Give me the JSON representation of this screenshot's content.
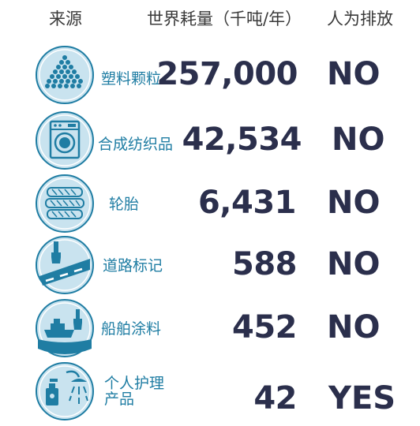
{
  "header": {
    "source": "来源",
    "amount": "世界耗量（千吨/年）",
    "human_emission": "人为排放"
  },
  "colors": {
    "accent": "#1f7da3",
    "dark": "#2b2f4c"
  },
  "rows": [
    {
      "label": "塑料颗粒",
      "amount": "257,000",
      "flag": "NO",
      "icon": "plastic-pellets-icon"
    },
    {
      "label": "合成纺织品",
      "amount": "42,534",
      "flag": "NO",
      "icon": "washing-machine-icon"
    },
    {
      "label": "轮胎",
      "amount": "6,431",
      "flag": "NO",
      "icon": "tires-icon"
    },
    {
      "label": "道路标记",
      "amount": "588",
      "flag": "NO",
      "icon": "road-marking-icon"
    },
    {
      "label": "船舶涂料",
      "amount": "452",
      "flag": "NO",
      "icon": "ship-paint-icon"
    },
    {
      "label_line1": "个人护理",
      "label_line2": "产品",
      "amount": "42",
      "flag": "YES",
      "icon": "personal-care-icon"
    }
  ]
}
